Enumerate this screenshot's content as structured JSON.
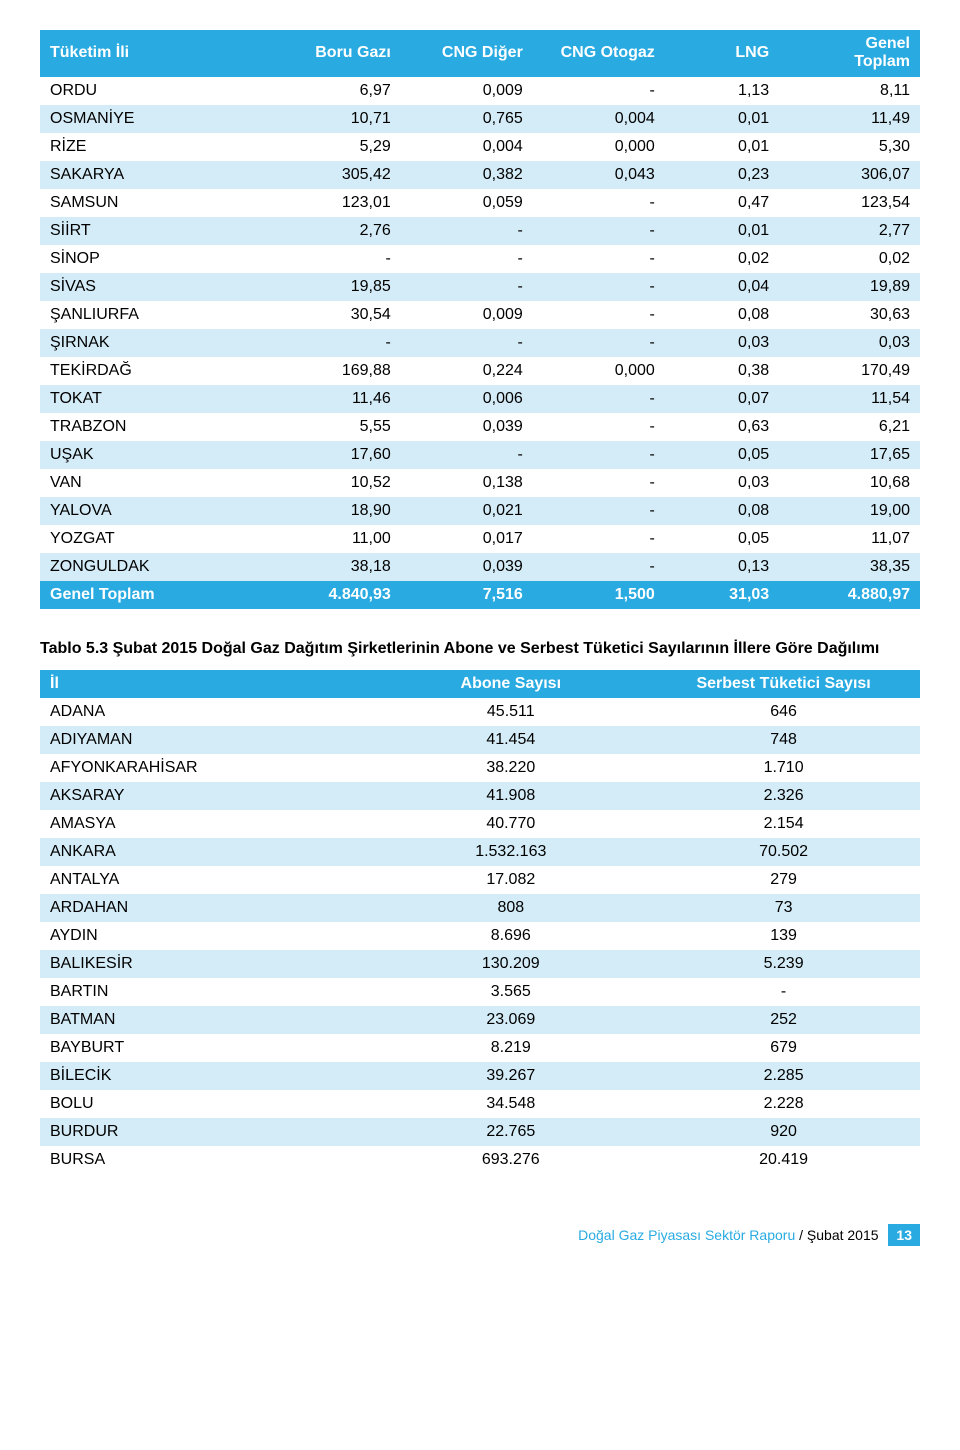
{
  "table1": {
    "headers": [
      "Tüketim İli",
      "Boru Gazı",
      "CNG Diğer",
      "CNG Otogaz",
      "LNG",
      "Genel\nToplam"
    ],
    "col_widths": [
      "26%",
      "15%",
      "15%",
      "15%",
      "13%",
      "16%"
    ],
    "header_bg": "#29abe2",
    "header_fg": "#ffffff",
    "stripe_odd": "#ffffff",
    "stripe_even": "#d4ecf7",
    "rows": [
      [
        "ORDU",
        "6,97",
        "0,009",
        "-",
        "1,13",
        "8,11"
      ],
      [
        "OSMANİYE",
        "10,71",
        "0,765",
        "0,004",
        "0,01",
        "11,49"
      ],
      [
        "RİZE",
        "5,29",
        "0,004",
        "0,000",
        "0,01",
        "5,30"
      ],
      [
        "SAKARYA",
        "305,42",
        "0,382",
        "0,043",
        "0,23",
        "306,07"
      ],
      [
        "SAMSUN",
        "123,01",
        "0,059",
        "-",
        "0,47",
        "123,54"
      ],
      [
        "SİİRT",
        "2,76",
        "-",
        "-",
        "0,01",
        "2,77"
      ],
      [
        "SİNOP",
        "-",
        "-",
        "-",
        "0,02",
        "0,02"
      ],
      [
        "SİVAS",
        "19,85",
        "-",
        "-",
        "0,04",
        "19,89"
      ],
      [
        "ŞANLIURFA",
        "30,54",
        "0,009",
        "-",
        "0,08",
        "30,63"
      ],
      [
        "ŞIRNAK",
        "-",
        "-",
        "-",
        "0,03",
        "0,03"
      ],
      [
        "TEKİRDAĞ",
        "169,88",
        "0,224",
        "0,000",
        "0,38",
        "170,49"
      ],
      [
        "TOKAT",
        "11,46",
        "0,006",
        "-",
        "0,07",
        "11,54"
      ],
      [
        "TRABZON",
        "5,55",
        "0,039",
        "-",
        "0,63",
        "6,21"
      ],
      [
        "UŞAK",
        "17,60",
        "-",
        "-",
        "0,05",
        "17,65"
      ],
      [
        "VAN",
        "10,52",
        "0,138",
        "-",
        "0,03",
        "10,68"
      ],
      [
        "YALOVA",
        "18,90",
        "0,021",
        "-",
        "0,08",
        "19,00"
      ],
      [
        "YOZGAT",
        "11,00",
        "0,017",
        "-",
        "0,05",
        "11,07"
      ],
      [
        "ZONGULDAK",
        "38,18",
        "0,039",
        "-",
        "0,13",
        "38,35"
      ]
    ],
    "footer": [
      "Genel Toplam",
      "4.840,93",
      "7,516",
      "1,500",
      "31,03",
      "4.880,97"
    ]
  },
  "caption2": "Tablo 5.3 Şubat 2015 Doğal Gaz Dağıtım Şirketlerinin Abone ve Serbest Tüketici Sayılarının İllere Göre Dağılımı",
  "table2": {
    "headers": [
      "İl",
      "Abone Sayısı",
      "Serbest Tüketici Sayısı"
    ],
    "header_bg": "#29abe2",
    "header_fg": "#ffffff",
    "stripe_odd": "#ffffff",
    "stripe_even": "#d4ecf7",
    "rows": [
      [
        "ADANA",
        "45.511",
        "646"
      ],
      [
        "ADIYAMAN",
        "41.454",
        "748"
      ],
      [
        "AFYONKARAHİSAR",
        "38.220",
        "1.710"
      ],
      [
        "AKSARAY",
        "41.908",
        "2.326"
      ],
      [
        "AMASYA",
        "40.770",
        "2.154"
      ],
      [
        "ANKARA",
        "1.532.163",
        "70.502"
      ],
      [
        "ANTALYA",
        "17.082",
        "279"
      ],
      [
        "ARDAHAN",
        "808",
        "73"
      ],
      [
        "AYDIN",
        "8.696",
        "139"
      ],
      [
        "BALIKESİR",
        "130.209",
        "5.239"
      ],
      [
        "BARTIN",
        "3.565",
        "-"
      ],
      [
        "BATMAN",
        "23.069",
        "252"
      ],
      [
        "BAYBURT",
        "8.219",
        "679"
      ],
      [
        "BİLECİK",
        "39.267",
        "2.285"
      ],
      [
        "BOLU",
        "34.548",
        "2.228"
      ],
      [
        "BURDUR",
        "22.765",
        "920"
      ],
      [
        "BURSA",
        "693.276",
        "20.419"
      ]
    ]
  },
  "footer": {
    "title": "Doğal Gaz Piyasası Sektör Raporu",
    "issue": " / Şubat 2015",
    "page": "13"
  }
}
